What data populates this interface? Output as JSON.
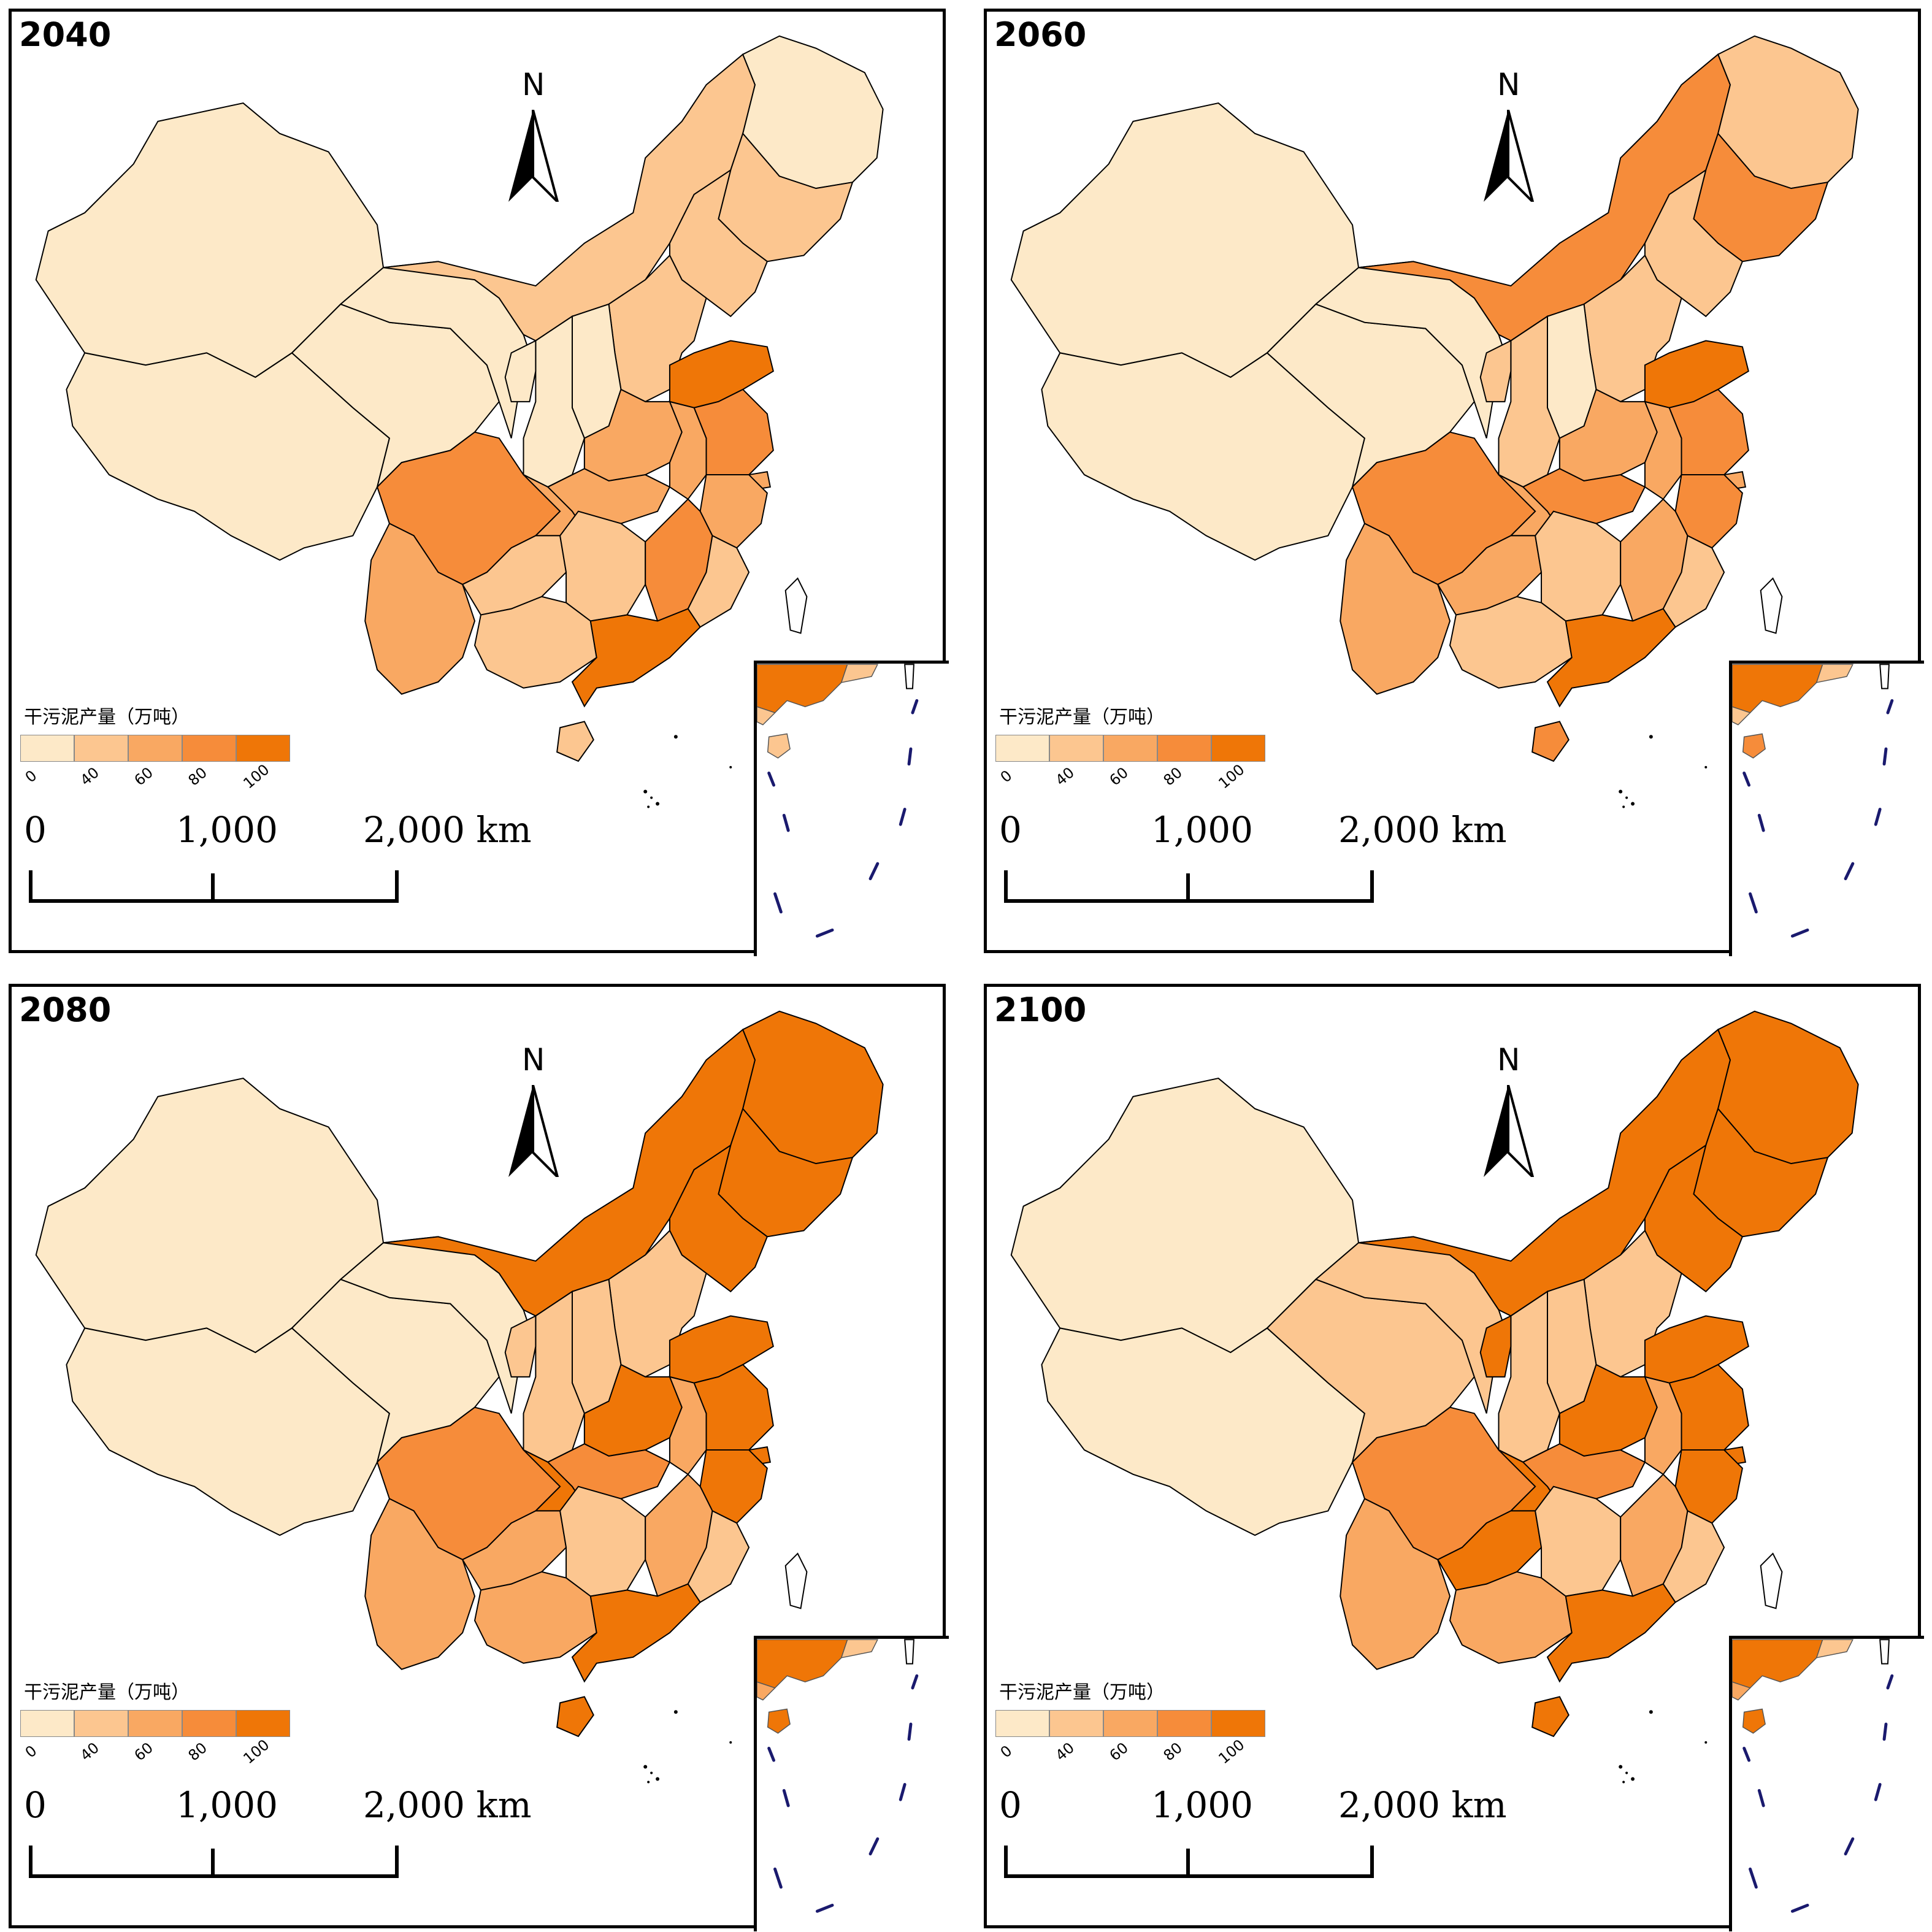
{
  "panels": [
    {
      "year": "2040",
      "fills": {
        "xinjiang": 0,
        "tibet": 0,
        "qinghai": 0,
        "gansu": 0,
        "neimenggu": 1,
        "heilongjiang": 0,
        "jilin": 1,
        "liaoning": 1,
        "beijing": 1,
        "tianjin": 1,
        "hebei": 1,
        "shanxi": 0,
        "shaanxi": 0,
        "ningxia": 0,
        "shandong": 4,
        "henan": 2,
        "sichuan": 3,
        "chongqing": 2,
        "hubei": 2,
        "anhui": 2,
        "jiangsu": 3,
        "shanghai": 2,
        "zhejiang": 2,
        "yunnan": 2,
        "guizhou": 1,
        "hunan": 1,
        "jiangxi": 3,
        "fujian": 1,
        "guangxi": 1,
        "guangdong": 4,
        "hainan": 1,
        "taiwan": -1
      }
    },
    {
      "year": "2060",
      "fills": {
        "xinjiang": 0,
        "tibet": 0,
        "qinghai": 0,
        "gansu": 0,
        "neimenggu": 3,
        "heilongjiang": 1,
        "jilin": 3,
        "liaoning": 1,
        "beijing": 1,
        "tianjin": 1,
        "hebei": 1,
        "shanxi": 0,
        "shaanxi": 1,
        "ningxia": 1,
        "shandong": 4,
        "henan": 2,
        "sichuan": 3,
        "chongqing": 2,
        "hubei": 3,
        "anhui": 2,
        "jiangsu": 3,
        "shanghai": 2,
        "zhejiang": 3,
        "yunnan": 2,
        "guizhou": 2,
        "hunan": 1,
        "jiangxi": 2,
        "fujian": 1,
        "guangxi": 1,
        "guangdong": 4,
        "hainan": 3,
        "taiwan": -1
      }
    },
    {
      "year": "2080",
      "fills": {
        "xinjiang": 0,
        "tibet": 0,
        "qinghai": 0,
        "gansu": 0,
        "neimenggu": 4,
        "heilongjiang": 4,
        "jilin": 4,
        "liaoning": 4,
        "beijing": 4,
        "tianjin": 4,
        "hebei": 1,
        "shanxi": 1,
        "shaanxi": 1,
        "ningxia": 1,
        "shandong": 4,
        "henan": 4,
        "sichuan": 3,
        "chongqing": 4,
        "hubei": 3,
        "anhui": 2,
        "jiangsu": 4,
        "shanghai": 4,
        "zhejiang": 4,
        "yunnan": 2,
        "guizhou": 2,
        "hunan": 1,
        "jiangxi": 2,
        "fujian": 1,
        "guangxi": 2,
        "guangdong": 4,
        "hainan": 4,
        "taiwan": -1
      }
    },
    {
      "year": "2100",
      "fills": {
        "xinjiang": 0,
        "tibet": 0,
        "qinghai": 1,
        "gansu": 1,
        "neimenggu": 4,
        "heilongjiang": 4,
        "jilin": 4,
        "liaoning": 4,
        "beijing": 4,
        "tianjin": 1,
        "hebei": 1,
        "shanxi": 1,
        "shaanxi": 1,
        "ningxia": 4,
        "shandong": 4,
        "henan": 4,
        "sichuan": 3,
        "chongqing": 4,
        "hubei": 3,
        "anhui": 2,
        "jiangsu": 4,
        "shanghai": 4,
        "zhejiang": 4,
        "yunnan": 2,
        "guizhou": 4,
        "hunan": 1,
        "jiangxi": 2,
        "fujian": 1,
        "guangxi": 2,
        "guangdong": 4,
        "hainan": 4,
        "taiwan": -1
      }
    }
  ],
  "legend": {
    "title": "干污泥产量（万吨）",
    "ticks": [
      "0",
      "40",
      "60",
      "80",
      "100"
    ],
    "colors": [
      "#FDE9C8",
      "#FCC690",
      "#F9A862",
      "#F68C3A",
      "#EF7607"
    ]
  },
  "north_label": "N",
  "scale": {
    "labels": [
      "0",
      "1,000",
      "2,000 km"
    ]
  }
}
